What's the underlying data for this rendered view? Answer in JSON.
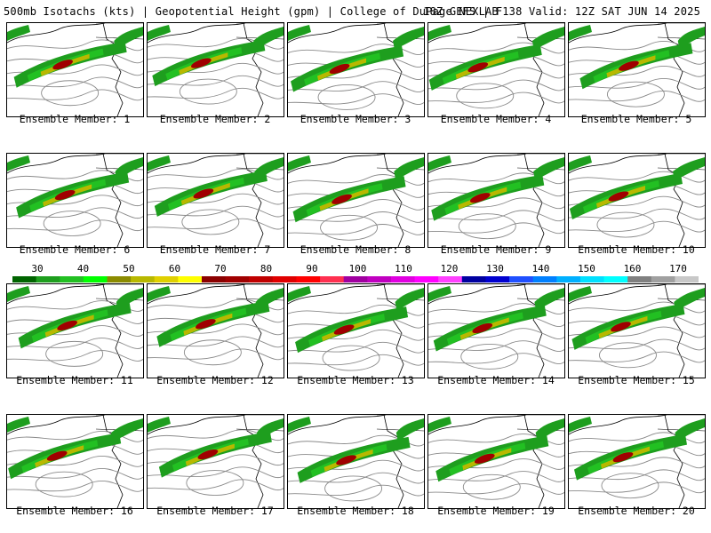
{
  "header": {
    "left": "500mb Isotachs (kts) | Geopotential Height (gpm) | College of DuPage NEXLAB",
    "right": "18Z GEFS | F138 Valid: 12Z SAT JUN 14 2025"
  },
  "members": [
    {
      "label": "Ensemble Member: 1"
    },
    {
      "label": "Ensemble Member: 2"
    },
    {
      "label": "Ensemble Member: 3"
    },
    {
      "label": "Ensemble Member: 4"
    },
    {
      "label": "Ensemble Member: 5"
    },
    {
      "label": "Ensemble Member: 6"
    },
    {
      "label": "Ensemble Member: 7"
    },
    {
      "label": "Ensemble Member: 8"
    },
    {
      "label": "Ensemble Member: 9"
    },
    {
      "label": "Ensemble Member: 10"
    },
    {
      "label": "Ensemble Member: 11"
    },
    {
      "label": "Ensemble Member: 12"
    },
    {
      "label": "Ensemble Member: 13"
    },
    {
      "label": "Ensemble Member: 14"
    },
    {
      "label": "Ensemble Member: 15"
    },
    {
      "label": "Ensemble Member: 16"
    },
    {
      "label": "Ensemble Member: 17"
    },
    {
      "label": "Ensemble Member: 18"
    },
    {
      "label": "Ensemble Member: 19"
    },
    {
      "label": "Ensemble Member: 20"
    }
  ],
  "colorbar": {
    "ticks": [
      "30",
      "40",
      "50",
      "60",
      "70",
      "80",
      "90",
      "100",
      "110",
      "120",
      "130",
      "140",
      "150",
      "160",
      "170"
    ],
    "colors": [
      "#006400",
      "#1e9e1e",
      "#22c022",
      "#00ff00",
      "#8b8b00",
      "#b8b800",
      "#e0d000",
      "#ffff00",
      "#8b0000",
      "#a00000",
      "#c00000",
      "#e00000",
      "#ff0000",
      "#ff3050",
      "#a000a0",
      "#c000c0",
      "#e000e0",
      "#ff00ff",
      "#ff40ff",
      "#0000a0",
      "#0000d0",
      "#2050ff",
      "#0080ff",
      "#00b0ff",
      "#00e0ff",
      "#00ffff",
      "#808080",
      "#a0a0a0",
      "#c8c8c8"
    ]
  }
}
